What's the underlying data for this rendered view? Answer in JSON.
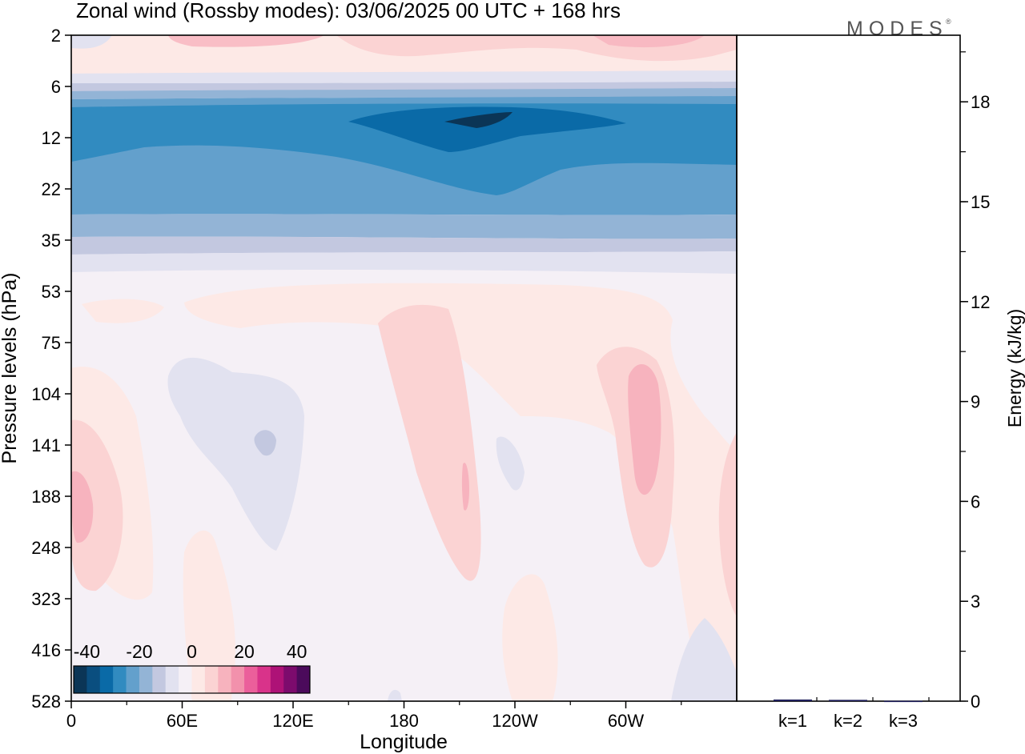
{
  "chart_data": [
    {
      "type": "heatmap",
      "title": "Zonal wind (Rossby modes):  03/06/2025  00 UTC  + 168 hrs",
      "xlabel": "Longitude",
      "ylabel": "Pressure levels (hPa)",
      "x_ticks": [
        "0",
        "60E",
        "120E",
        "180",
        "120W",
        "60W"
      ],
      "y_ticks": [
        "2",
        "6",
        "12",
        "22",
        "35",
        "53",
        "75",
        "104",
        "141",
        "188",
        "248",
        "323",
        "416",
        "528"
      ],
      "colorbar": {
        "tick_labels": [
          "-40",
          "-20",
          "0",
          "20",
          "40"
        ],
        "range": [
          -45,
          45
        ],
        "step": 5,
        "colors": [
          "#0b3556",
          "#0a4e7f",
          "#0a6aa7",
          "#318bc0",
          "#63a0cc",
          "#93b4d6",
          "#c3c8e0",
          "#e2e2f0",
          "#f5f0f6",
          "#fde9e6",
          "#fbd3d3",
          "#f7b3be",
          "#f291ac",
          "#eb5f9b",
          "#d9338a",
          "#ae1277",
          "#7c0b6d",
          "#4b0a5b"
        ]
      },
      "bands": [
        {
          "level": "2-5 hPa",
          "value": 10
        },
        {
          "level": "6-7 hPa",
          "value": -10
        },
        {
          "level": "8-11 hPa",
          "value": -32
        },
        {
          "level": "12-16 hPa",
          "value": -27
        },
        {
          "level": "18-30 hPa",
          "value": -20
        },
        {
          "level": "32-50 hPa",
          "value": -8
        },
        {
          "level": "53-528 hPa",
          "value": 0
        }
      ],
      "wind_extremes": [
        {
          "label": "stratospheric easterly jet core",
          "lon": "160W",
          "level_hpa": 10,
          "value": -42
        },
        {
          "label": "upper westerly maximum",
          "lon": "120E-60W",
          "level_hpa": 2,
          "value": 12
        },
        {
          "label": "westerly maximum",
          "lon": "50W",
          "level_hpa": 141,
          "value": 12
        },
        {
          "label": "westerly maximum",
          "lon": "5E",
          "level_hpa": 188,
          "value": 12
        },
        {
          "label": "westerly maximum",
          "lon": "160W",
          "level_hpa": 188,
          "value": 14
        },
        {
          "label": "easterly minimum",
          "lon": "100E",
          "level_hpa": 141,
          "value": -8
        }
      ]
    },
    {
      "type": "bar",
      "ylabel": "Energy (kJ/kg)",
      "y_ticks": [
        "0",
        "3",
        "6",
        "9",
        "12",
        "15",
        "18"
      ],
      "ylim": [
        0,
        20
      ],
      "categories": [
        "k=1",
        "k=2",
        "k=3"
      ],
      "values": [
        0.05,
        0.04,
        0.01
      ],
      "bar_color": "#1f1f5c"
    }
  ],
  "watermark": "MODES"
}
